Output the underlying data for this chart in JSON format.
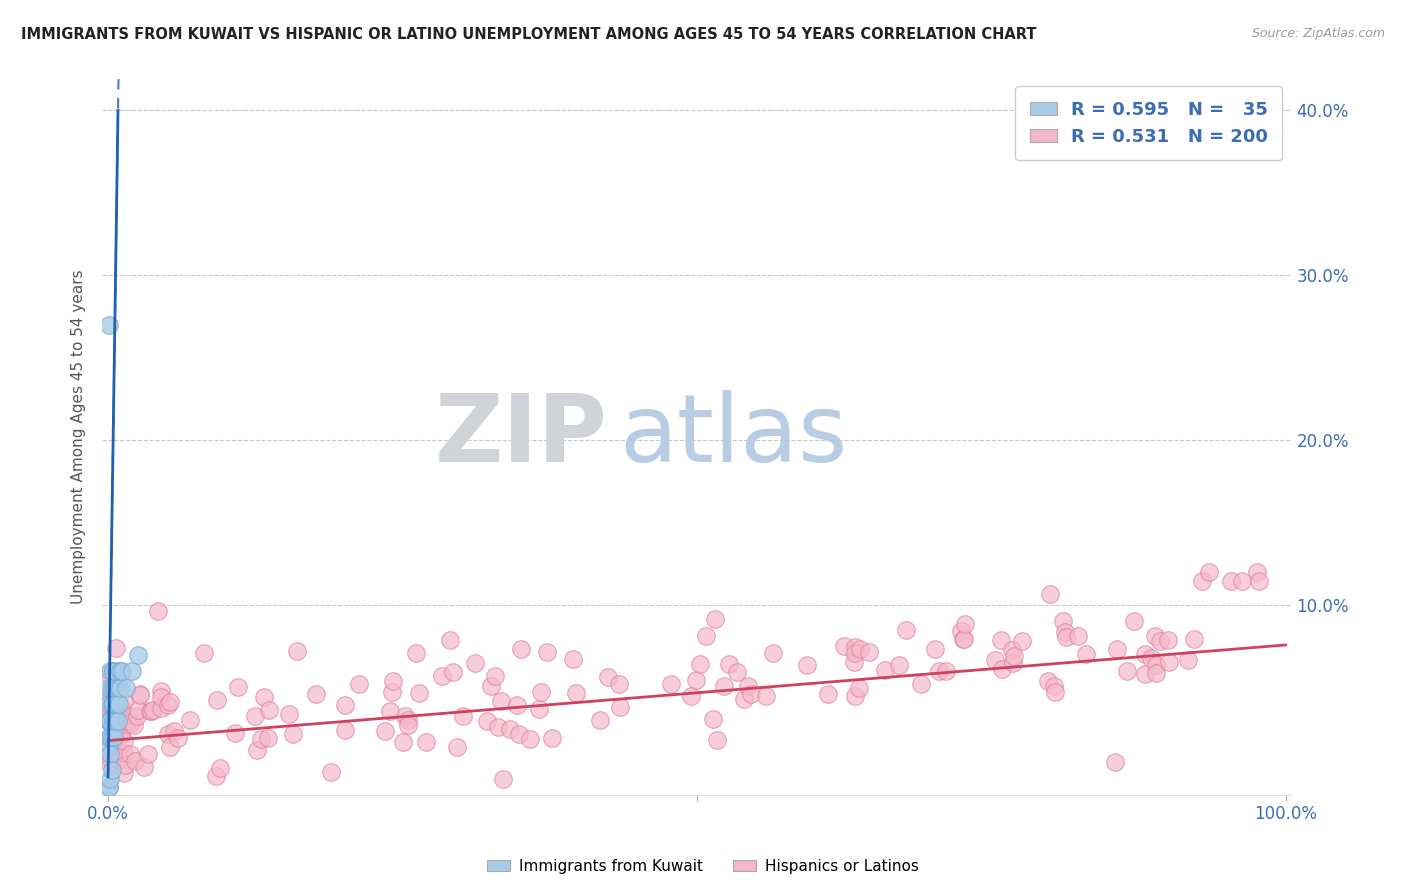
{
  "title": "IMMIGRANTS FROM KUWAIT VS HISPANIC OR LATINO UNEMPLOYMENT AMONG AGES 45 TO 54 YEARS CORRELATION CHART",
  "source": "Source: ZipAtlas.com",
  "ylabel": "Unemployment Among Ages 45 to 54 years",
  "xlim": [
    -0.005,
    1.005
  ],
  "ylim": [
    -0.015,
    0.42
  ],
  "blue_R": 0.595,
  "blue_N": 35,
  "pink_R": 0.531,
  "pink_N": 200,
  "blue_color": "#A8CCE8",
  "blue_line_color": "#2060B0",
  "blue_edge_color": "#7AAAD4",
  "pink_color": "#F5B8CA",
  "pink_line_color": "#D04060",
  "pink_edge_color": "#E080A0",
  "legend_color": "#3B6DB5",
  "watermark_zip": "ZIP",
  "watermark_atlas": "atlas",
  "watermark_zip_color": "#D0D4D8",
  "watermark_atlas_color": "#B8CCE4",
  "background_color": "#FFFFFF",
  "grid_color": "#BBBBBB",
  "title_color": "#222222",
  "figsize": [
    14.06,
    8.92
  ],
  "dpi": 100
}
